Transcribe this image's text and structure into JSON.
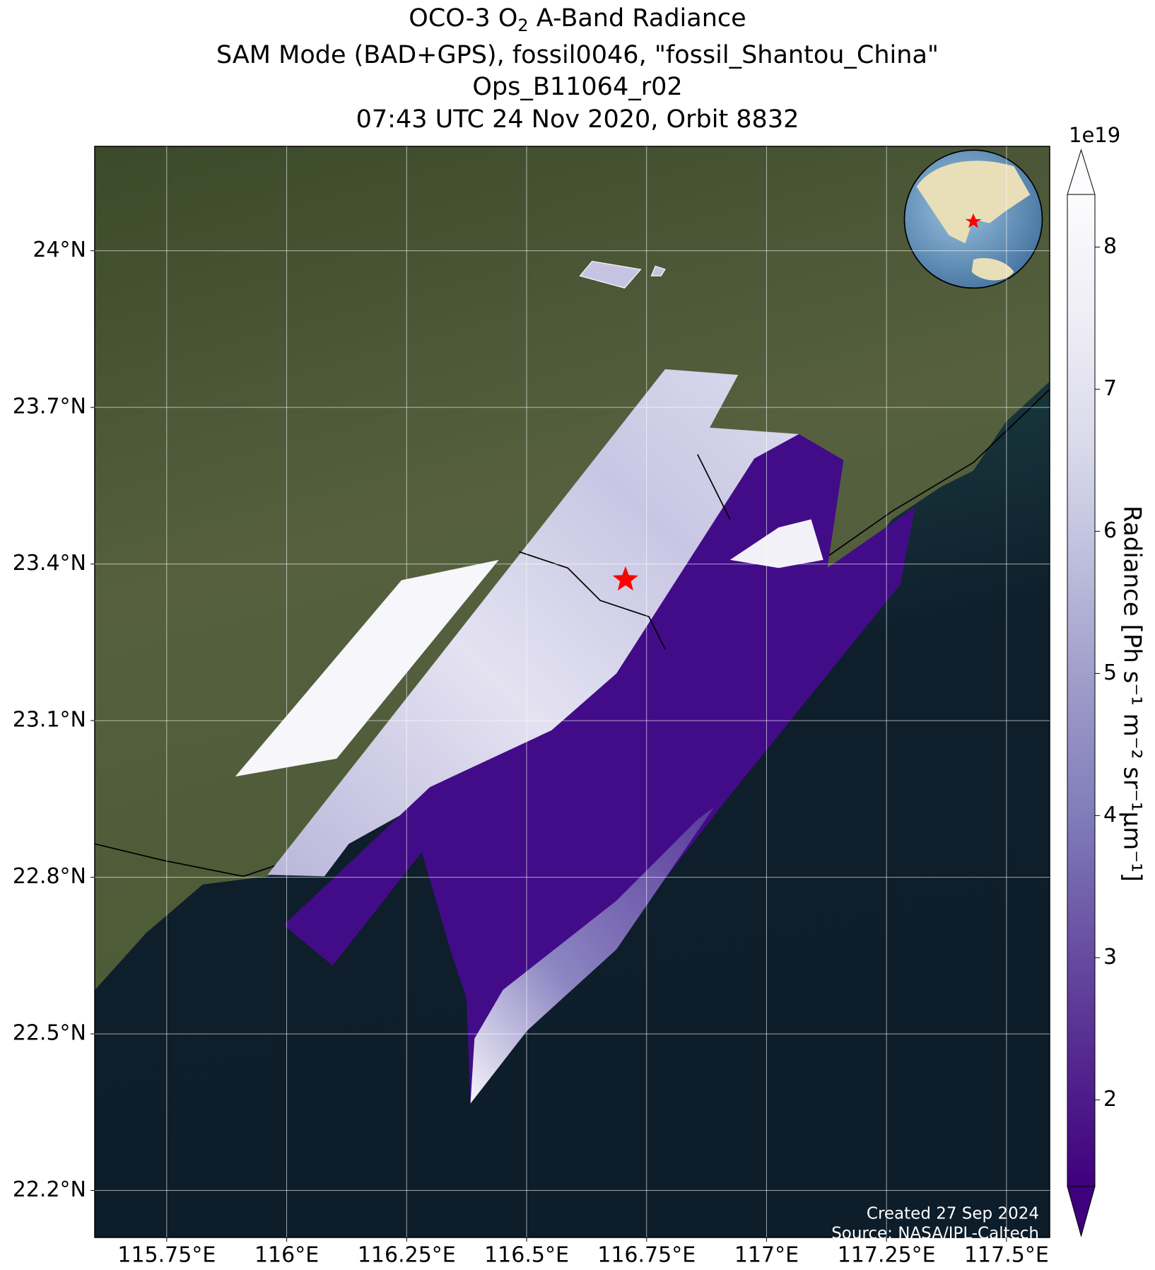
{
  "title": {
    "line1_start": "OCO-3 O",
    "line1_subscript": "2",
    "line1_end": " A-Band Radiance",
    "line2": "SAM Mode (BAD+GPS), fossil0046, \"fossil_Shantou_China\"",
    "line3": "Ops_B11064_r02",
    "line4": "07:43 UTC 24 Nov 2020, Orbit 8832"
  },
  "map": {
    "xlim": [
      115.6,
      117.59
    ],
    "ylim": [
      22.11,
      24.2
    ],
    "xticks": [
      {
        "value": 115.75,
        "label": "115.75°E"
      },
      {
        "value": 116,
        "label": "116°E"
      },
      {
        "value": 116.25,
        "label": "116.25°E"
      },
      {
        "value": 116.5,
        "label": "116.5°E"
      },
      {
        "value": 116.75,
        "label": "116.75°E"
      },
      {
        "value": 117,
        "label": "117°E"
      },
      {
        "value": 117.25,
        "label": "117.25°E"
      },
      {
        "value": 117.5,
        "label": "117.5°E"
      }
    ],
    "yticks": [
      {
        "value": 22.2,
        "label": "22.2°N"
      },
      {
        "value": 22.5,
        "label": "22.5°N"
      },
      {
        "value": 22.8,
        "label": "22.8°N"
      },
      {
        "value": 23.1,
        "label": "23.1°N"
      },
      {
        "value": 23.4,
        "label": "23.4°N"
      },
      {
        "value": 23.7,
        "label": "23.7°N"
      },
      {
        "value": 24,
        "label": "24°N"
      }
    ],
    "grid": true,
    "site": {
      "lon": 116.706,
      "lat": 23.37,
      "color": "#ff0000"
    }
  },
  "colorbar": {
    "label": "Radiance [Ph s⁻¹ m⁻² sr⁻¹μm⁻¹]",
    "exponent": "1e19",
    "lim": [
      1.39,
      8.37
    ],
    "ticks": [
      2,
      3,
      4,
      5,
      6,
      7,
      8
    ],
    "colormap": [
      "#3f007d",
      "#54278f",
      "#6a51a3",
      "#807dba",
      "#9e9ac8",
      "#bcbddc",
      "#dadaeb",
      "#efedf5",
      "#fcfbfd"
    ]
  },
  "footer": {
    "created": "Created 27 Sep 2024",
    "source": "Source: NASA/JPL-Caltech"
  }
}
